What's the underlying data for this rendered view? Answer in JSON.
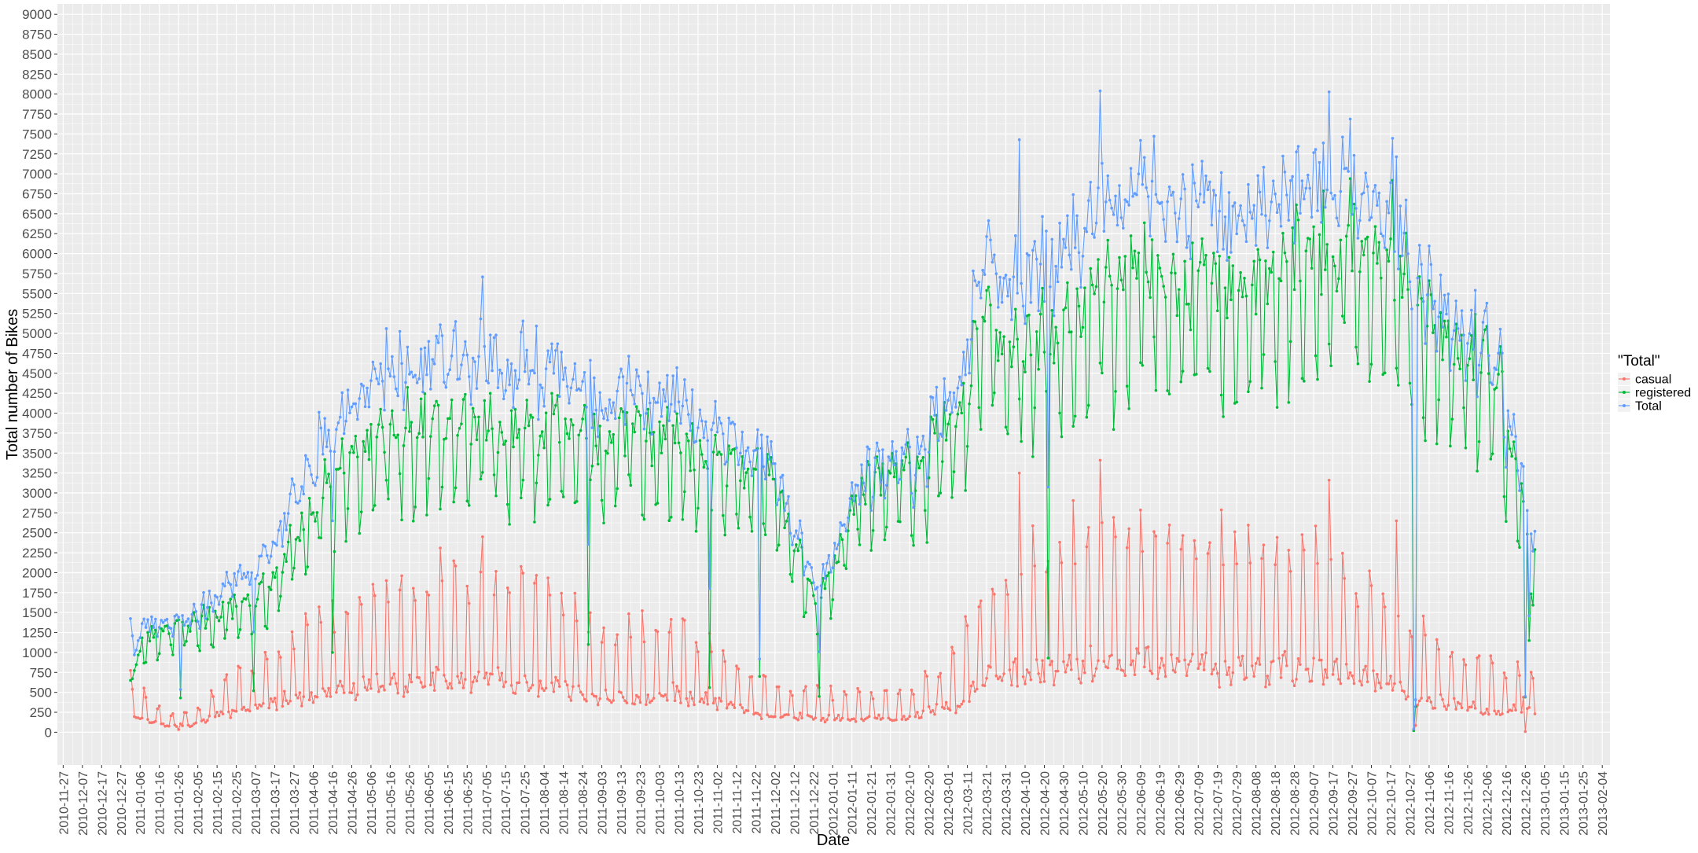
{
  "colors": {
    "panel_bg": "#ebebeb",
    "grid": "#ffffff",
    "text": "#4d4d4d",
    "title_text": "#000000"
  },
  "chart_data": {
    "type": "line",
    "xlabel": "Date",
    "ylabel": "Total number of Bikes",
    "x_type": "date",
    "x_start": "2011-01-01",
    "x_end": "2012-12-31",
    "xlim": [
      "2010-11-24",
      "2013-02-08"
    ],
    "ylim": [
      -410,
      9130
    ],
    "y_ticks": [
      0,
      250,
      500,
      750,
      1000,
      1250,
      1500,
      1750,
      2000,
      2250,
      2500,
      2750,
      3000,
      3250,
      3500,
      3750,
      4000,
      4250,
      4500,
      4750,
      5000,
      5250,
      5500,
      5750,
      6000,
      6250,
      6500,
      6750,
      7000,
      7250,
      7500,
      7750,
      8000,
      8250,
      8500,
      8750,
      9000
    ],
    "x_ticks": [
      "2010-11-27",
      "2010-12-07",
      "2010-12-17",
      "2010-12-27",
      "2011-01-06",
      "2011-01-16",
      "2011-01-26",
      "2011-02-05",
      "2011-02-15",
      "2011-02-25",
      "2011-03-07",
      "2011-03-17",
      "2011-03-27",
      "2011-04-06",
      "2011-04-16",
      "2011-04-26",
      "2011-05-06",
      "2011-05-16",
      "2011-05-26",
      "2011-06-05",
      "2011-06-15",
      "2011-06-25",
      "2011-07-05",
      "2011-07-15",
      "2011-07-25",
      "2011-08-04",
      "2011-08-14",
      "2011-08-24",
      "2011-09-03",
      "2011-09-13",
      "2011-09-23",
      "2011-10-03",
      "2011-10-13",
      "2011-10-23",
      "2011-11-02",
      "2011-11-12",
      "2011-11-22",
      "2011-12-02",
      "2011-12-12",
      "2011-12-22",
      "2012-01-01",
      "2012-01-11",
      "2012-01-21",
      "2012-01-31",
      "2012-02-10",
      "2012-02-20",
      "2012-03-01",
      "2012-03-11",
      "2012-03-21",
      "2012-03-31",
      "2012-04-10",
      "2012-04-20",
      "2012-04-30",
      "2012-05-10",
      "2012-05-20",
      "2012-05-30",
      "2012-06-09",
      "2012-06-19",
      "2012-06-29",
      "2012-07-09",
      "2012-07-19",
      "2012-07-29",
      "2012-08-08",
      "2012-08-18",
      "2012-08-28",
      "2012-09-07",
      "2012-09-17",
      "2012-09-27",
      "2012-10-07",
      "2012-10-17",
      "2012-10-27",
      "2012-11-06",
      "2012-11-16",
      "2012-11-26",
      "2012-12-06",
      "2012-12-16",
      "2012-12-26",
      "2013-01-05",
      "2013-01-15",
      "2013-01-25",
      "2013-02-04"
    ],
    "legend": {
      "title": "\"Total\"",
      "position": "right"
    },
    "grid": true,
    "series": [
      {
        "name": "casual",
        "color": "#F8766D",
        "keyframes": [
          [
            "2011-01-01",
            330
          ],
          [
            "2011-01-20",
            110
          ],
          [
            "2011-02-05",
            160
          ],
          [
            "2011-02-20",
            360
          ],
          [
            "2011-03-10",
            480
          ],
          [
            "2011-04-01",
            640
          ],
          [
            "2011-04-20",
            760
          ],
          [
            "2011-05-20",
            900
          ],
          [
            "2011-06-15",
            940
          ],
          [
            "2011-07-10",
            980
          ],
          [
            "2011-08-10",
            860
          ],
          [
            "2011-09-05",
            620
          ],
          [
            "2011-10-10",
            700
          ],
          [
            "2011-11-01",
            520
          ],
          [
            "2011-11-25",
            330
          ],
          [
            "2011-12-20",
            260
          ],
          [
            "2012-01-15",
            240
          ],
          [
            "2012-02-10",
            260
          ],
          [
            "2012-03-05",
            480
          ],
          [
            "2012-03-25",
            1050
          ],
          [
            "2012-04-20",
            1100
          ],
          [
            "2012-05-20",
            1350
          ],
          [
            "2012-06-20",
            1250
          ],
          [
            "2012-07-20",
            1200
          ],
          [
            "2012-08-20",
            1200
          ],
          [
            "2012-09-20",
            1050
          ],
          [
            "2012-10-20",
            820
          ],
          [
            "2012-11-10",
            520
          ],
          [
            "2012-12-10",
            420
          ],
          [
            "2012-12-31",
            360
          ]
        ],
        "peak_mult": [
          2.05,
          1.9
        ],
        "dip_mult": 0.55,
        "noise": 0.16,
        "outliers": [
          [
            "2012-10-29",
            22
          ],
          [
            "2012-10-30",
            87
          ],
          [
            "2012-10-20",
            2650
          ],
          [
            "2012-05-19",
            3410
          ],
          [
            "2012-09-15",
            3160
          ],
          [
            "2012-04-07",
            3250
          ],
          [
            "2011-07-03",
            2450
          ],
          [
            "2011-06-11",
            2310
          ],
          [
            "2012-12-25",
            440
          ],
          [
            "2012-12-26",
            9
          ],
          [
            "2011-01-26",
            34
          ]
        ]
      },
      {
        "name": "registered",
        "color": "#00BA38",
        "keyframes": [
          [
            "2011-01-01",
            650
          ],
          [
            "2011-01-10",
            1200
          ],
          [
            "2011-02-01",
            1350
          ],
          [
            "2011-02-20",
            1500
          ],
          [
            "2011-03-15",
            1800
          ],
          [
            "2011-04-10",
            2900
          ],
          [
            "2011-05-01",
            3550
          ],
          [
            "2011-06-01",
            3750
          ],
          [
            "2011-07-01",
            3750
          ],
          [
            "2011-08-01",
            3700
          ],
          [
            "2011-09-01",
            3550
          ],
          [
            "2011-10-01",
            3650
          ],
          [
            "2011-11-01",
            3350
          ],
          [
            "2011-12-01",
            3100
          ],
          [
            "2011-12-25",
            1500
          ],
          [
            "2012-01-15",
            3050
          ],
          [
            "2012-02-15",
            3250
          ],
          [
            "2012-03-05",
            3800
          ],
          [
            "2012-03-20",
            5000
          ],
          [
            "2012-04-20",
            4750
          ],
          [
            "2012-05-20",
            5350
          ],
          [
            "2012-06-20",
            5550
          ],
          [
            "2012-07-20",
            5400
          ],
          [
            "2012-08-20",
            5600
          ],
          [
            "2012-09-20",
            6000
          ],
          [
            "2012-10-15",
            5950
          ],
          [
            "2012-11-10",
            4800
          ],
          [
            "2012-12-10",
            4500
          ],
          [
            "2012-12-31",
            2100
          ]
        ],
        "peak_mult": [
          1.1,
          1.08
        ],
        "dip_mult": 0.74,
        "noise": 0.07,
        "outliers": [
          [
            "2011-01-01",
            650
          ],
          [
            "2011-01-02",
            670
          ],
          [
            "2011-01-27",
            430
          ],
          [
            "2011-03-06",
            520
          ],
          [
            "2011-04-16",
            1000
          ],
          [
            "2011-08-27",
            1100
          ],
          [
            "2011-10-29",
            560
          ],
          [
            "2011-11-24",
            700
          ],
          [
            "2011-12-25",
            450
          ],
          [
            "2012-04-22",
            930
          ],
          [
            "2012-10-29",
            20
          ],
          [
            "2012-10-30",
            320
          ],
          [
            "2012-12-26",
            440
          ],
          [
            "2012-09-26",
            6940
          ],
          [
            "2012-10-18",
            6920
          ],
          [
            "2012-12-28",
            1150
          ],
          [
            "2012-12-31",
            2290
          ]
        ]
      },
      {
        "name": "Total",
        "color": "#619CFF",
        "sum_of": [
          "casual",
          "registered"
        ]
      }
    ]
  }
}
